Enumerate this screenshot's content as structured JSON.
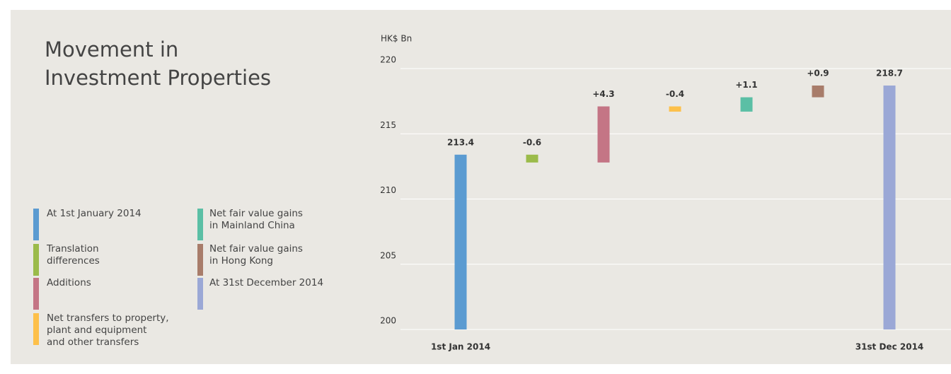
{
  "chart_data": {
    "type": "waterfall",
    "title": "Movement in\nInvestment Properties",
    "y_label": "HK$ Bn",
    "categories": [
      "1st Jan 2014",
      null,
      null,
      null,
      null,
      null,
      "31st Dec 2014"
    ],
    "values": [
      213.4,
      -0.6,
      4.3,
      -0.4,
      1.1,
      0.9,
      218.7
    ],
    "value_labels": [
      "213.4",
      "-0.6",
      "+4.3",
      "-0.4",
      "+1.1",
      "+0.9",
      "218.7"
    ],
    "colors": [
      "#5b9bd1",
      "#9bbb4a",
      "#c47585",
      "#fdc04a",
      "#5bbfa5",
      "#a87c6a",
      "#9ba8d6"
    ],
    "legend": [
      "At 1st January 2014",
      "Translation\ndifferences",
      "Additions",
      "Net transfers to property,\nplant and equipment\nand other transfers",
      "Net fair value gains\nin Mainland China",
      "Net fair value gains\nin Hong Kong",
      "At 31st December 2014"
    ],
    "ylim": [
      200,
      220
    ],
    "yticks": [
      200,
      205,
      210,
      215,
      220
    ],
    "grid": true
  }
}
